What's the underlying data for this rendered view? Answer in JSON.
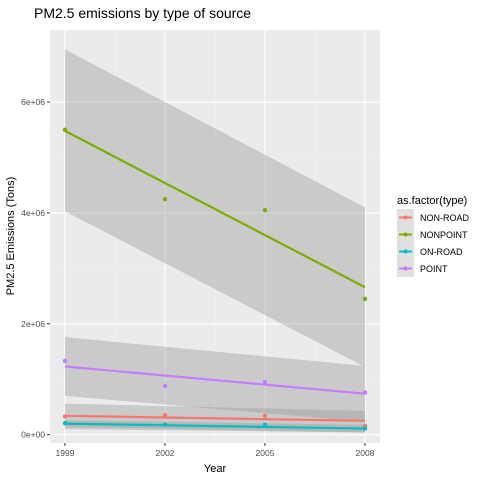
{
  "chart_data": {
    "type": "scatter",
    "title": "PM2.5 emissions by type of source",
    "xlabel": "Year",
    "ylabel": "PM2.5 Emissions (Tons)",
    "x": [
      1999,
      2002,
      2005,
      2008
    ],
    "x_ticks": [
      1999,
      2002,
      2005,
      2008
    ],
    "x_tick_labels": [
      "1999",
      "2002",
      "2005",
      "2008"
    ],
    "xlim": [
      1999,
      2008
    ],
    "y_ticks": [
      0,
      2000000,
      4000000,
      6000000
    ],
    "y_tick_labels": [
      "0e+00",
      "2e+06",
      "4e+06",
      "6e+06"
    ],
    "ylim": [
      0,
      7000000
    ],
    "grid": true,
    "smoothing": "linear fit with confidence band",
    "legend": {
      "title": "as.factor(type)",
      "position": "right"
    },
    "series": [
      {
        "name": "NON-ROAD",
        "color": "#F8766D",
        "values": [
          330000,
          350000,
          340000,
          160000
        ],
        "fit": [
          340000,
          250000
        ],
        "band": {
          "upper": [
            560000,
            430000
          ],
          "lower": [
            100000,
            40000
          ]
        }
      },
      {
        "name": "NONPOINT",
        "color": "#7CAE00",
        "values": [
          5500000,
          4250000,
          4050000,
          2450000
        ],
        "fit": [
          5480000,
          2660000
        ],
        "band": {
          "upper": [
            6950000,
            4100000
          ],
          "lower": [
            4030000,
            1220000
          ]
        }
      },
      {
        "name": "ON-ROAD",
        "color": "#00BFC4",
        "values": [
          210000,
          180000,
          180000,
          110000
        ],
        "fit": [
          200000,
          110000
        ],
        "band": {
          "upper": [
            260000,
            180000
          ],
          "lower": [
            140000,
            40000
          ]
        }
      },
      {
        "name": "POINT",
        "color": "#C77CFF",
        "values": [
          1330000,
          880000,
          950000,
          760000
        ],
        "fit": [
          1230000,
          740000
        ],
        "band": {
          "upper": [
            1760000,
            1240000
          ],
          "lower": [
            700000,
            230000
          ]
        }
      }
    ]
  }
}
